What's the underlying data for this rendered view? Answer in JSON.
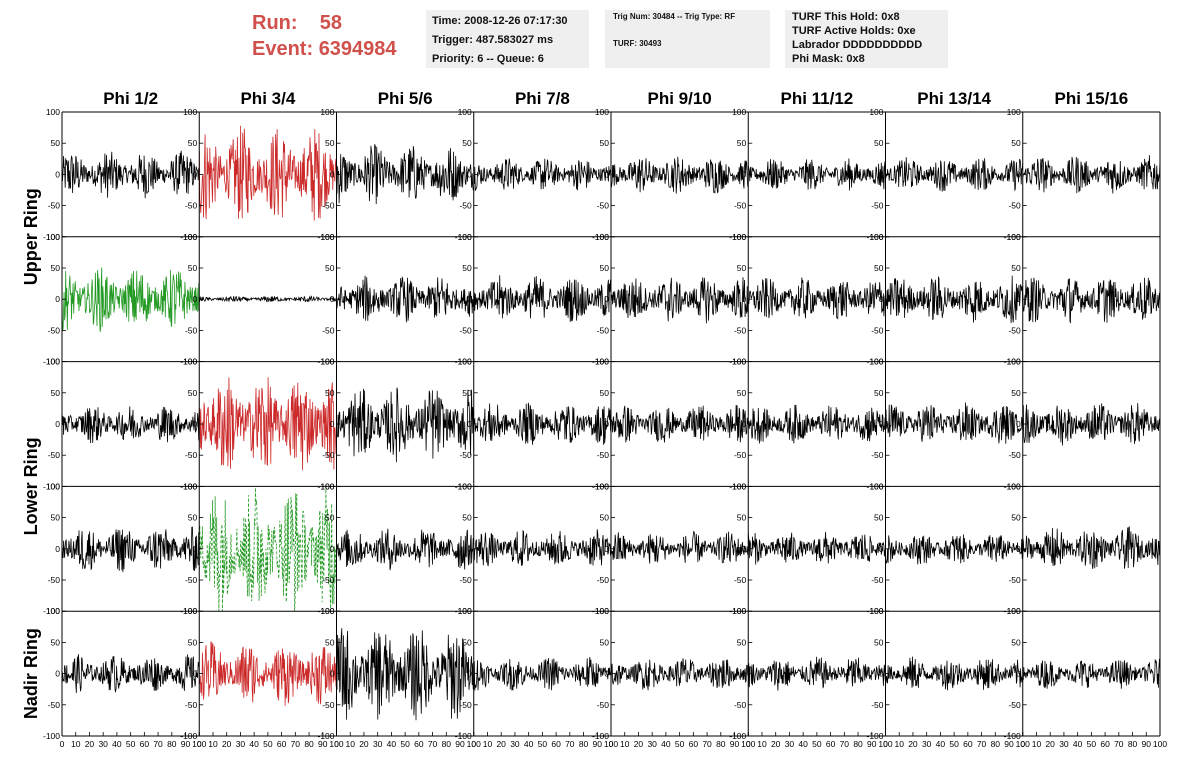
{
  "header": {
    "run_label": "Run:",
    "run_value": "58",
    "event_label": "Event:",
    "event_value": "6394984",
    "time": "Time: 2008-12-26 07:17:30",
    "trigger": "Trigger: 487.583027 ms",
    "priority": "Priority: 6 -- Queue: 6",
    "trig_num": "Trig Num: 30484 -- Trig Type: RF",
    "turf": "TURF: 30493",
    "turf_this_hold": "TURF This Hold: 0x8",
    "turf_active_holds": "TURF Active Holds: 0xe",
    "labrador": "Labrador DDDDDDDDDD",
    "phi_mask": "Phi Mask: 0x8"
  },
  "colors": {
    "accent_red": "#d0504c",
    "trace_default": "#000000",
    "trace_red": "#cc2a2a",
    "trace_green": "#229922",
    "info_box": "#efefef"
  },
  "chart_data": {
    "type": "line",
    "columns": [
      "Phi 1/2",
      "Phi 3/4",
      "Phi 5/6",
      "Phi 7/8",
      "Phi 9/10",
      "Phi 11/12",
      "Phi 13/14",
      "Phi 15/16"
    ],
    "ring_labels": [
      "Upper Ring",
      "Lower Ring",
      "Nadir Ring"
    ],
    "row_groups": [
      2,
      2,
      1
    ],
    "ylim": [
      -100,
      100
    ],
    "xlim": [
      0,
      100
    ],
    "yticks": [
      "100",
      "50",
      "0",
      "-50",
      "-100"
    ],
    "xticks": [
      "0",
      "10",
      "20",
      "30",
      "40",
      "50",
      "60",
      "70",
      "80",
      "90",
      "100"
    ],
    "amplitudes": [
      [
        22,
        45,
        28,
        16,
        18,
        15,
        16,
        18
      ],
      [
        30,
        3,
        22,
        22,
        22,
        20,
        22,
        22
      ],
      [
        18,
        48,
        35,
        20,
        18,
        18,
        20,
        20
      ],
      [
        22,
        62,
        20,
        18,
        16,
        16,
        15,
        20
      ],
      [
        18,
        30,
        45,
        16,
        16,
        16,
        16,
        14
      ]
    ],
    "trace_styles": [
      [
        "black",
        "red",
        "black",
        "black",
        "black",
        "black",
        "black",
        "black"
      ],
      [
        "green",
        "black",
        "black",
        "black",
        "black",
        "black",
        "black",
        "black"
      ],
      [
        "black",
        "red",
        "black",
        "black",
        "black",
        "black",
        "black",
        "black"
      ],
      [
        "black",
        "green-dashed",
        "black",
        "black",
        "black",
        "black",
        "black",
        "black"
      ],
      [
        "black",
        "red",
        "black",
        "black",
        "black",
        "black",
        "black",
        "black"
      ]
    ]
  }
}
